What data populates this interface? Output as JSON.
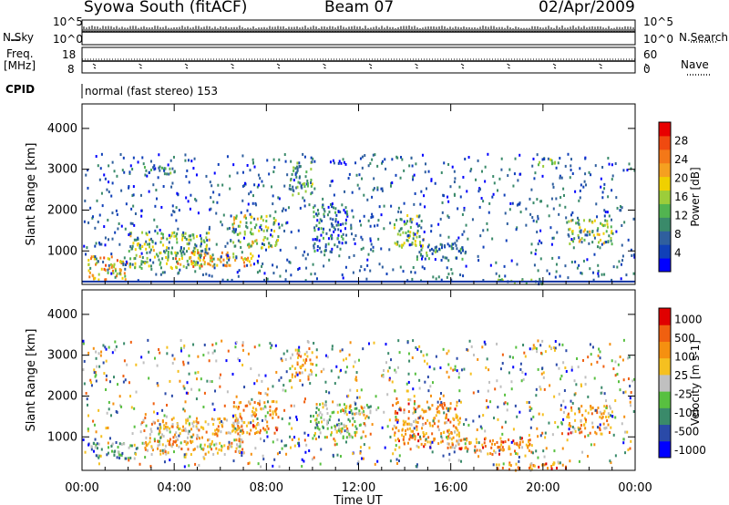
{
  "header": {
    "station": "Syowa South (fitACF)",
    "beam": "Beam 07",
    "date": "02/Apr/2009"
  },
  "params": {
    "nsky_label": "N.Sky",
    "nsearch_label": "N.Search",
    "freq_label_1": "Freq.",
    "freq_label_2": "[MHz]",
    "nave_label": "Nave",
    "cpid_label": "CPID",
    "cpid_text": "normal (fast stereo) 153",
    "nsky_ticks": [
      "10^5",
      "10^0"
    ],
    "freq_ticks": [
      "18",
      "8"
    ],
    "nave_ticks": [
      "60",
      "0"
    ]
  },
  "chart_data": [
    {
      "type": "heatmap",
      "title": "",
      "xlabel": "Time UT",
      "ylabel": "Slant Range [km]",
      "xlim": [
        0,
        24
      ],
      "ylim": [
        180,
        4600
      ],
      "x_ticks": [
        "00:00",
        "04:00",
        "08:00",
        "12:00",
        "16:00",
        "20:00",
        "00:00"
      ],
      "y_ticks": [
        1000,
        2000,
        3000,
        4000
      ],
      "colorbar": {
        "label": "Power [dB]",
        "ticks": [
          "4",
          "8",
          "12",
          "16",
          "20",
          "24",
          "28"
        ],
        "colors": [
          "#0000ff",
          "#1040b8",
          "#2f5f9e",
          "#3a8a6a",
          "#52b450",
          "#9ccd3a",
          "#f0d000",
          "#f5a020",
          "#f47818",
          "#f04a10",
          "#e80000"
        ]
      },
      "regions": [
        {
          "t": [
            0.2,
            2.0
          ],
          "r": [
            300,
            900
          ],
          "level": 0.65
        },
        {
          "t": [
            2.0,
            5.5
          ],
          "r": [
            600,
            1500
          ],
          "level": 0.45
        },
        {
          "t": [
            4.0,
            7.5
          ],
          "r": [
            650,
            1000
          ],
          "level": 0.7
        },
        {
          "t": [
            6.5,
            8.5
          ],
          "r": [
            1100,
            1900
          ],
          "level": 0.5
        },
        {
          "t": [
            2.0,
            4.0
          ],
          "r": [
            2900,
            3100
          ],
          "level": 0.25
        },
        {
          "t": [
            9.0,
            10.0
          ],
          "r": [
            2400,
            3200
          ],
          "level": 0.35
        },
        {
          "t": [
            10.0,
            11.5
          ],
          "r": [
            1000,
            2200
          ],
          "level": 0.2
        },
        {
          "t": [
            13.5,
            14.8
          ],
          "r": [
            1100,
            1900
          ],
          "level": 0.45
        },
        {
          "t": [
            14.5,
            16.5
          ],
          "r": [
            800,
            1200
          ],
          "level": 0.3
        },
        {
          "t": [
            18.0,
            20.0
          ],
          "r": [
            200,
            350
          ],
          "level": 0.35
        },
        {
          "t": [
            21.0,
            23.0
          ],
          "r": [
            1200,
            1800
          ],
          "level": 0.45
        },
        {
          "t": [
            19.5,
            20.5
          ],
          "r": [
            3100,
            3300
          ],
          "level": 0.35
        }
      ]
    },
    {
      "type": "heatmap",
      "title": "",
      "xlabel": "Time UT",
      "ylabel": "Slant Range [km]",
      "xlim": [
        0,
        24
      ],
      "ylim": [
        180,
        4600
      ],
      "x_ticks": [
        "00:00",
        "04:00",
        "08:00",
        "12:00",
        "16:00",
        "20:00",
        "00:00"
      ],
      "y_ticks": [
        1000,
        2000,
        3000,
        4000
      ],
      "colorbar": {
        "label": "Velocity [m s-1]",
        "ticks": [
          "1000",
          "500",
          "100",
          "25",
          "-25",
          "-100",
          "-500",
          "-1000"
        ],
        "colors": [
          "#0000ff",
          "#2a4aa8",
          "#3a8a6a",
          "#58c040",
          "#c0c0c0",
          "#f5c020",
          "#f59010",
          "#f06010",
          "#e00000"
        ]
      },
      "regions": [
        {
          "t": [
            0.2,
            2.5
          ],
          "r": [
            500,
            900
          ],
          "level": 0.35
        },
        {
          "t": [
            2.5,
            7.0
          ],
          "r": [
            600,
            1500
          ],
          "level": 0.65
        },
        {
          "t": [
            6.5,
            8.5
          ],
          "r": [
            1100,
            1900
          ],
          "level": 0.72
        },
        {
          "t": [
            9.0,
            10.0
          ],
          "r": [
            2400,
            3200
          ],
          "level": 0.7
        },
        {
          "t": [
            10.0,
            12.5
          ],
          "r": [
            1000,
            1900
          ],
          "level": 0.5
        },
        {
          "t": [
            13.5,
            16.5
          ],
          "r": [
            700,
            1900
          ],
          "level": 0.75
        },
        {
          "t": [
            16.5,
            19.5
          ],
          "r": [
            600,
            1000
          ],
          "level": 0.8
        },
        {
          "t": [
            18.0,
            21.0
          ],
          "r": [
            200,
            400
          ],
          "level": 0.75
        },
        {
          "t": [
            21.0,
            23.0
          ],
          "r": [
            1100,
            1800
          ],
          "level": 0.72
        },
        {
          "t": [
            19.5,
            20.5
          ],
          "r": [
            3100,
            3300
          ],
          "level": 0.5
        }
      ]
    }
  ]
}
